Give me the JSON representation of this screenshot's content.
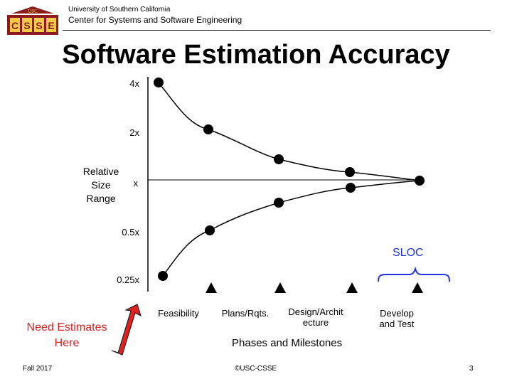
{
  "header": {
    "university": "University of Southern California",
    "center": "Center for Systems and Software Engineering",
    "logo_text": "USC",
    "logo_letters": [
      "C",
      "S",
      "S",
      "E"
    ]
  },
  "title": "Software Estimation Accuracy",
  "diagram": {
    "y_axis_label_lines": [
      "Relative",
      "Size",
      "Range"
    ],
    "y_ticks": [
      "4x",
      "2x",
      "x",
      "0.5x",
      "0.25x"
    ],
    "phases": [
      {
        "line1": "Feasibility",
        "line2": ""
      },
      {
        "line1": "Plans/Rqts.",
        "line2": ""
      },
      {
        "line1": "Design/Archit",
        "line2": "ecture"
      },
      {
        "line1": "Develop",
        "line2": "and Test"
      }
    ],
    "x_axis_label": "Phases and Milestones",
    "sloc_label": "SLOC",
    "need_estimates_lines": [
      "Need Estimates",
      "Here"
    ],
    "colors": {
      "sloc": "#2233dd",
      "arrow": "#dd2222",
      "need_text": "#dd2222"
    }
  },
  "footer": {
    "left": "Fall 2017",
    "center": "©USC-CSSE",
    "page": "3"
  }
}
